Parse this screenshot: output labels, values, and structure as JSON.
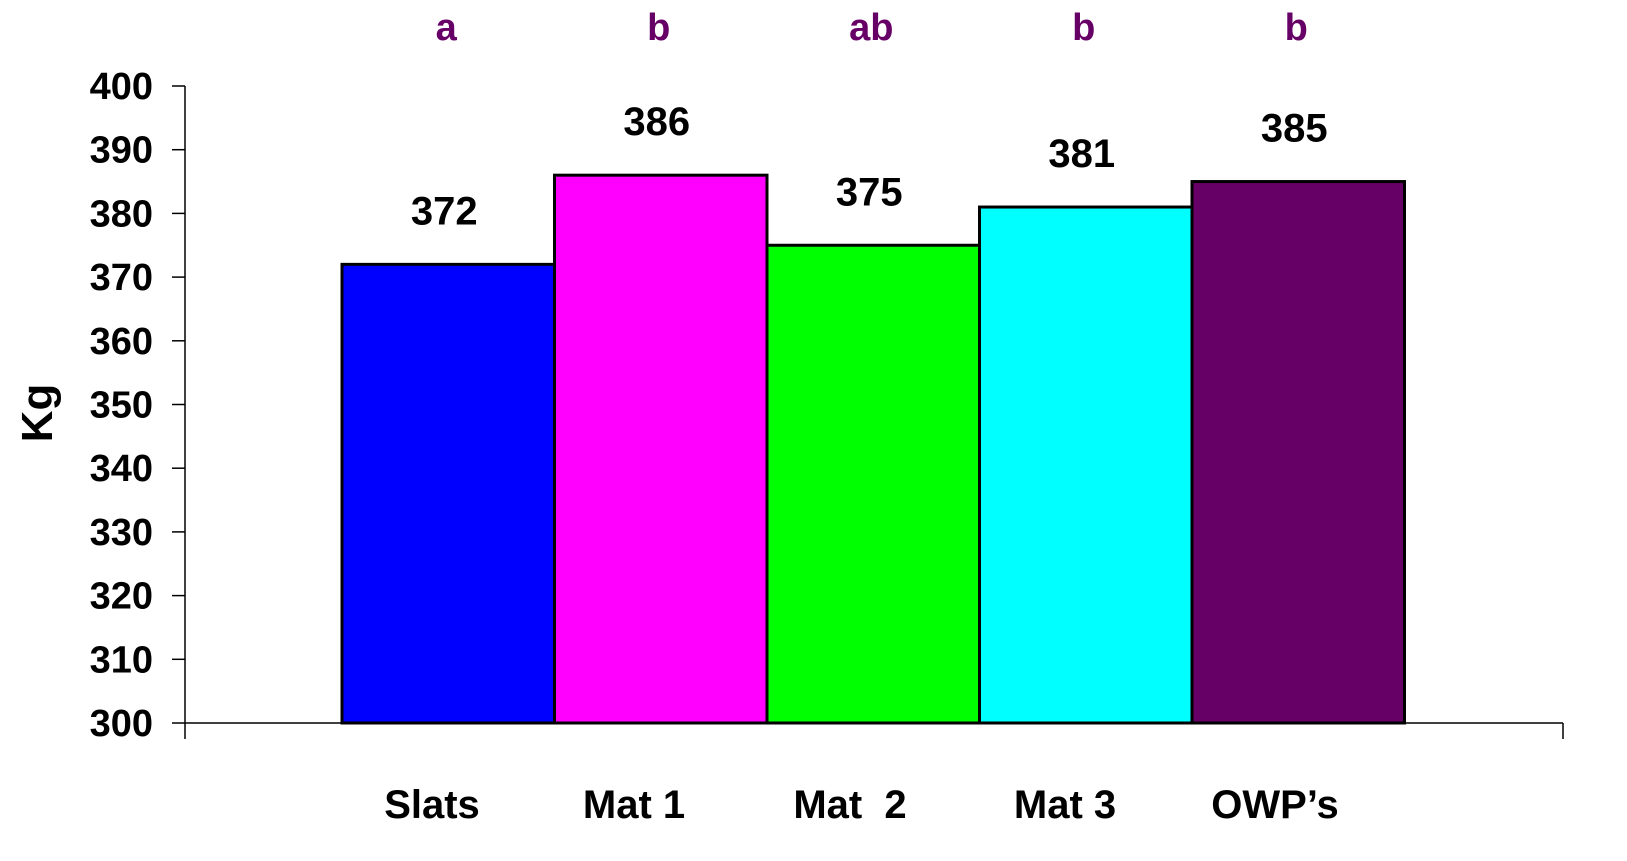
{
  "chart_data": {
    "type": "bar",
    "categories": [
      "Slats",
      "Mat 1",
      "Mat  2",
      "Mat 3",
      "OWP’s"
    ],
    "values": [
      372,
      386,
      375,
      381,
      385
    ],
    "data_labels": [
      "372",
      "386",
      "375",
      "381",
      "385"
    ],
    "significance_letters": [
      "a",
      "b",
      "ab",
      "b",
      "b"
    ],
    "bar_colors": [
      "#0000FF",
      "#FF00FF",
      "#00FF00",
      "#00FFFF",
      "#660066"
    ],
    "letter_color": "#660066",
    "ylabel": "Kg",
    "ylim": [
      300,
      400
    ],
    "yticks": [
      "300",
      "310",
      "320",
      "330",
      "340",
      "350",
      "360",
      "370",
      "380",
      "390",
      "400"
    ],
    "grid": false,
    "legend": false
  }
}
